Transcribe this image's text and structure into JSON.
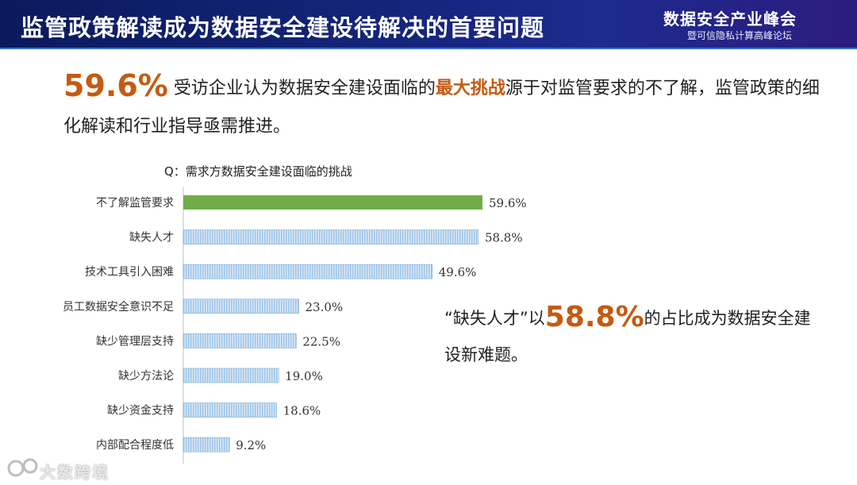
{
  "header": {
    "title": "监管政策解读成为数据安全建设待解决的首要问题",
    "summit_name": "数据安全产业峰会",
    "summit_sub": "暨可信隐私计算高峰论坛"
  },
  "headline": {
    "percent": "59.6%",
    "text_before": "受访企业认为数据安全建设面临的",
    "emphasis": "最大挑战",
    "text_after": "源于对监管要求的不了解，监管政策的细化解读和行业指导亟需推进。"
  },
  "callout": {
    "quote": "“缺失人才”以",
    "percent": "58.8%",
    "text_after": "的占比成为数据安全建设新难题。"
  },
  "watermark": {
    "text": "大数跨境"
  },
  "colors": {
    "header_bg": "#14247a",
    "accent_orange": "#c55a11",
    "bar_highlight": "#70ad47",
    "bar_default": "#9dc3e6"
  },
  "chart_data": {
    "type": "bar",
    "orientation": "horizontal",
    "title": "Q：需求方数据安全建设面临的挑战",
    "categories": [
      "不了解监管要求",
      "缺失人才",
      "技术工具引入困难",
      "员工数据安全意识不足",
      "缺少管理层支持",
      "缺少方法论",
      "缺少资金支持",
      "内部配合程度低"
    ],
    "values": [
      59.6,
      58.8,
      49.6,
      23.0,
      22.5,
      19.0,
      18.6,
      9.2
    ],
    "labels": [
      "59.6%",
      "58.8%",
      "49.6%",
      "23.0%",
      "22.5%",
      "19.0%",
      "18.6%",
      "9.2%"
    ],
    "highlight_index": 0,
    "unit": "%",
    "grid": false
  }
}
